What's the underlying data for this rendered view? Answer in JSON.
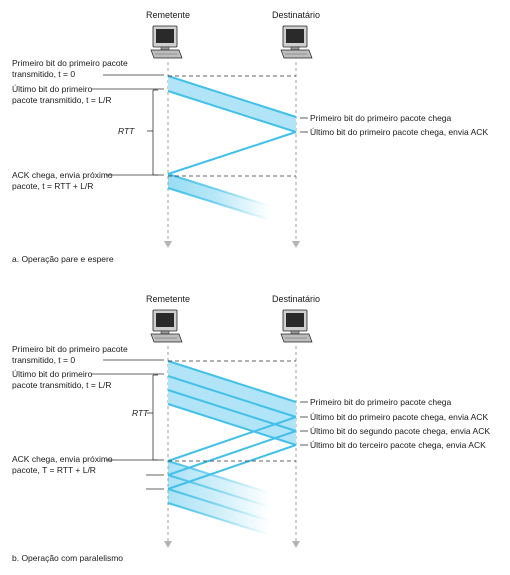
{
  "colors": {
    "packet": "#43c0ea",
    "packet_fill": "#b2e4f7",
    "timeline": "#b3b3b3",
    "text": "#1a1a1a",
    "dashed": "#333333"
  },
  "icons": [
    "computer-terminal-icon",
    "down-arrow-icon"
  ],
  "panel_a": {
    "sender": "Remetente",
    "receiver": "Destinatário",
    "label_first_bit_sent_1": "Primeiro bit do primeiro pacote",
    "label_first_bit_sent_2": "transmitido, t = 0",
    "label_last_bit_sent_1": "Último bit do primeiro",
    "label_last_bit_sent_2": "pacote transmitido, t = L/R",
    "rtt": "RTT",
    "label_ack_1": "ACK chega, envia próximo",
    "label_ack_2": "pacote, t = RTT + L/R",
    "recv_first_bit": "Primeiro bit do primeiro pacote chega",
    "recv_last_bit": "Último bit do primeiro pacote chega, envia ACK",
    "caption": "a. Operação pare e espere"
  },
  "panel_b": {
    "sender": "Remetente",
    "receiver": "Destinatário",
    "label_first_bit_sent_1": "Primeiro bit do primeiro pacote",
    "label_first_bit_sent_2": "transmitido, t = 0",
    "label_last_bit_sent_1": "Último bit do primeiro",
    "label_last_bit_sent_2": "pacote transmitido, t = L/R",
    "rtt": "RTT",
    "label_ack_1": "ACK chega, envia próximo",
    "label_ack_2": "pacote, T = RTT + L/R",
    "recv_first_bit": "Primeiro bit do primeiro pacote chega",
    "recv_last_bit_1": "Último bit do primeiro pacote chega, envia ACK",
    "recv_last_bit_2": "Último bit do segundo pacote chega, envia ACK",
    "recv_last_bit_3": "Último bit do terceiro pacote chega, envia ACK",
    "caption": "b. Operação com paralelismo"
  }
}
